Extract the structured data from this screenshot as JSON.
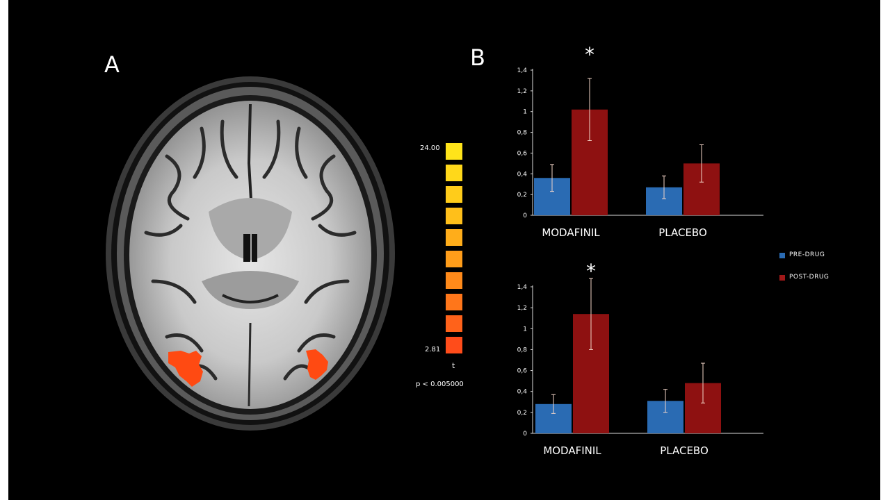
{
  "panel_a": {
    "label": "A"
  },
  "panel_b": {
    "label": "B"
  },
  "colorbar": {
    "max_label": "24.00",
    "min_label": "2.81",
    "stat_label": "t",
    "threshold_label": "p < 0.005000",
    "colors": [
      "#ffe41a",
      "#ffd81a",
      "#ffcc1a",
      "#ffbf1a",
      "#ffad1a",
      "#ff9d1a",
      "#ff8a1a",
      "#ff761a",
      "#ff621a",
      "#ff4c1a"
    ]
  },
  "legend": [
    {
      "label": "PRE-DRUG",
      "color": "#2a6bb3"
    },
    {
      "label": "POST-DRUG",
      "color": "#a01818"
    }
  ],
  "colors": {
    "pre": "#2a6bb3",
    "post": "#8e1111",
    "activation": "#ff4a12"
  },
  "chart_data": [
    {
      "type": "bar",
      "categories": [
        "MODAFINIL",
        "PLACEBO"
      ],
      "series": [
        {
          "name": "PRE-DRUG",
          "values": [
            0.36,
            0.27
          ],
          "errors": [
            0.13,
            0.11
          ]
        },
        {
          "name": "POST-DRUG",
          "values": [
            1.02,
            0.5
          ],
          "errors": [
            0.3,
            0.18
          ]
        }
      ],
      "ylim": [
        0,
        1.4
      ],
      "yticks": [
        "0",
        "0,2",
        "0,4",
        "0,6",
        "0,8",
        "1",
        "1,2",
        "1,4"
      ],
      "annotation": "*"
    },
    {
      "type": "bar",
      "categories": [
        "MODAFINIL",
        "PLACEBO"
      ],
      "series": [
        {
          "name": "PRE-DRUG",
          "values": [
            0.28,
            0.31
          ],
          "errors": [
            0.09,
            0.11
          ]
        },
        {
          "name": "POST-DRUG",
          "values": [
            1.14,
            0.48
          ],
          "errors": [
            0.34,
            0.19
          ]
        }
      ],
      "ylim": [
        0,
        1.4
      ],
      "yticks": [
        "0",
        "0,2",
        "0,4",
        "0,6",
        "0,8",
        "1",
        "1,2",
        "1,4"
      ],
      "annotation": "*"
    }
  ]
}
